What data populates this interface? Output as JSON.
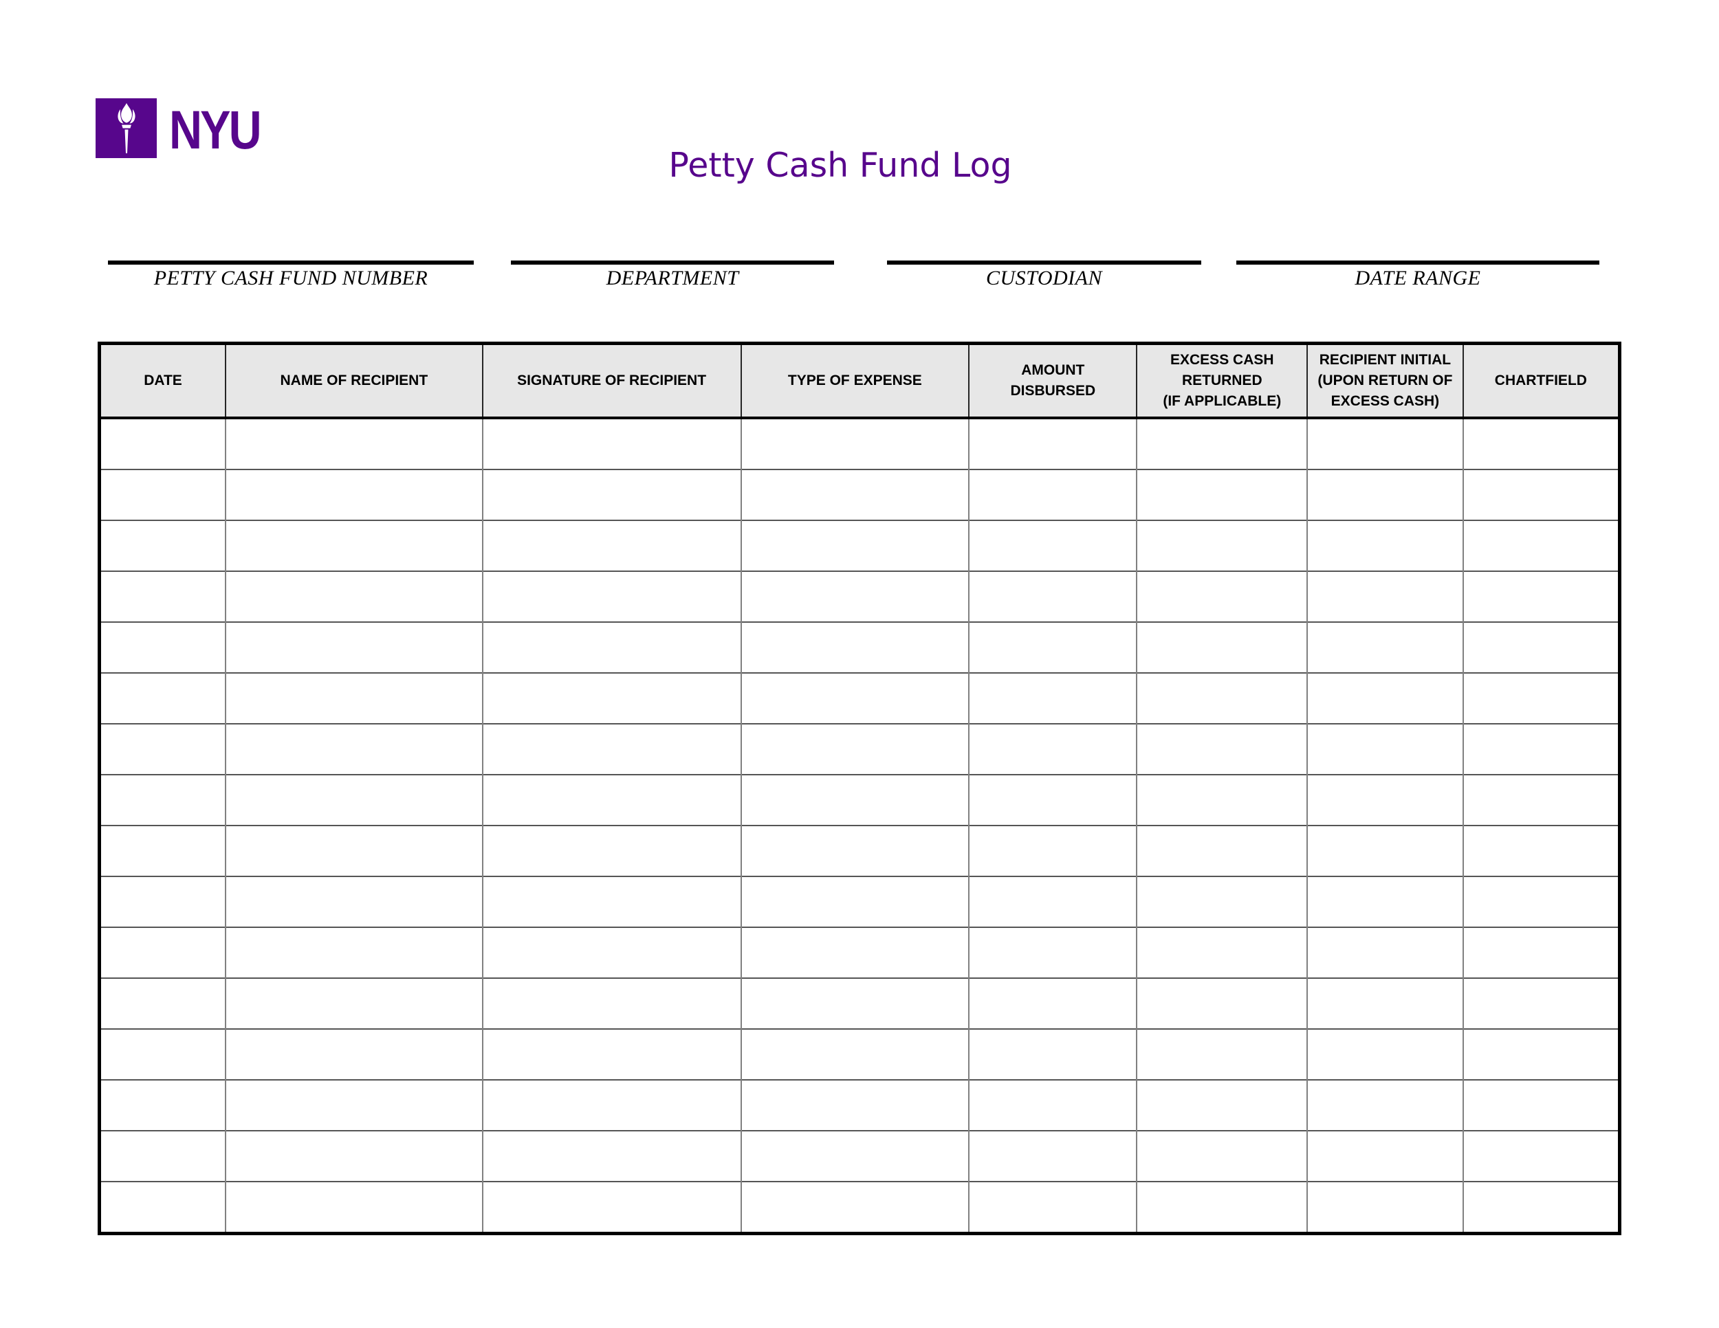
{
  "header": {
    "logo_text": "NYU",
    "title": "Petty Cash Fund Log"
  },
  "colors": {
    "nyu_purple": "#57068c",
    "header_row_bg": "#e7e7e7",
    "table_outer_border": "#000000",
    "grid_horizontal_line": "#555555",
    "grid_vertical_line": "#808080"
  },
  "fields": [
    {
      "label": "PETTY CASH FUND NUMBER",
      "value": ""
    },
    {
      "label": "DEPARTMENT",
      "value": ""
    },
    {
      "label": "CUSTODIAN",
      "value": ""
    },
    {
      "label": "DATE RANGE",
      "value": ""
    }
  ],
  "table": {
    "columns": [
      {
        "label": "DATE"
      },
      {
        "label": "NAME OF RECIPIENT"
      },
      {
        "label": "SIGNATURE OF RECIPIENT"
      },
      {
        "label": "TYPE OF EXPENSE"
      },
      {
        "label": "AMOUNT\nDISBURSED"
      },
      {
        "label": "EXCESS CASH\nRETURNED\n(IF APPLICABLE)"
      },
      {
        "label": "RECIPIENT INITIAL\n(UPON RETURN OF\nEXCESS CASH)"
      },
      {
        "label": "CHARTFIELD"
      }
    ],
    "row_count": 16,
    "cells_empty": true
  }
}
